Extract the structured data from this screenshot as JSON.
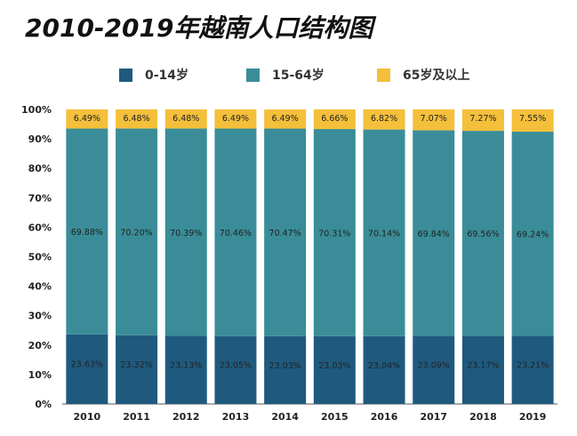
{
  "page": {
    "title": "2010-2019年越南人口结构图"
  },
  "colors": {
    "0-14": "#1f5a7e",
    "15-64": "#3a8d98",
    "65+": "#f4bf3a",
    "grid": "#e6e6e6",
    "axis": "#555555"
  },
  "chart_data": {
    "type": "bar",
    "stacked": true,
    "title": "2010-2019年越南人口结构图",
    "categories": [
      "2010",
      "2011",
      "2012",
      "2013",
      "2014",
      "2015",
      "2016",
      "2017",
      "2018",
      "2019"
    ],
    "series": [
      {
        "name": "0-14岁",
        "color": "#1f5a7e",
        "values": [
          23.63,
          23.32,
          23.13,
          23.05,
          23.03,
          23.03,
          23.04,
          23.09,
          23.17,
          23.21
        ],
        "labels": [
          "23.63%",
          "23.32%",
          "23.13%",
          "23.05%",
          "23.03%",
          "23.03%",
          "23.04%",
          "23.09%",
          "23.17%",
          "23.21%"
        ]
      },
      {
        "name": "15-64岁",
        "color": "#3a8d98",
        "values": [
          69.88,
          70.2,
          70.39,
          70.46,
          70.47,
          70.31,
          70.14,
          69.84,
          69.56,
          69.24
        ],
        "labels": [
          "69.88%",
          "70.20%",
          "70.39%",
          "70.46%",
          "70.47%",
          "70.31%",
          "70.14%",
          "69.84%",
          "69.56%",
          "69.24%"
        ]
      },
      {
        "name": "65岁及以上",
        "color": "#f4bf3a",
        "values": [
          6.49,
          6.48,
          6.48,
          6.49,
          6.49,
          6.66,
          6.82,
          7.07,
          7.27,
          7.55
        ],
        "labels": [
          "6.49%",
          "6.48%",
          "6.48%",
          "6.49%",
          "6.49%",
          "6.66%",
          "6.82%",
          "7.07%",
          "7.27%",
          "7.55%"
        ]
      }
    ],
    "y_ticks": [
      "0%",
      "10%",
      "20%",
      "30%",
      "40%",
      "50%",
      "60%",
      "70%",
      "80%",
      "90%",
      "100%"
    ],
    "ylim": [
      0,
      100
    ],
    "legend_position": "top",
    "grid": false
  }
}
